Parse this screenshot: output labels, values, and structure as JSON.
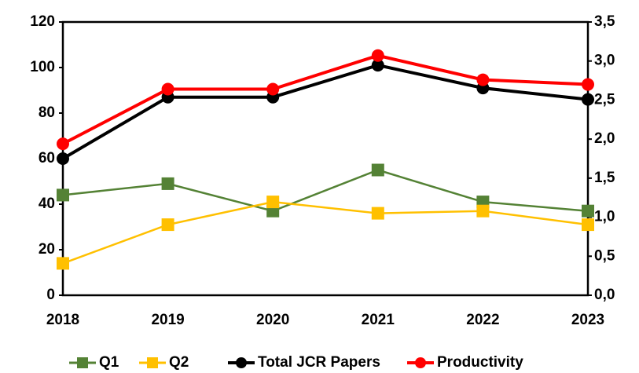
{
  "chart_data": {
    "type": "line",
    "categories": [
      "2018",
      "2019",
      "2020",
      "2021",
      "2022",
      "2023"
    ],
    "series": [
      {
        "name": "Q1",
        "color": "#548235",
        "marker": "square",
        "values": [
          44,
          49,
          37,
          55,
          41,
          37
        ]
      },
      {
        "name": "Q2",
        "color": "#ffc000",
        "marker": "square",
        "values": [
          14,
          31,
          41,
          36,
          37,
          31
        ]
      },
      {
        "name": "Total JCR Papers",
        "color": "#000000",
        "marker": "circle",
        "values": [
          60,
          87,
          87,
          101,
          91,
          86
        ]
      },
      {
        "name": "Productivity",
        "color": "#ff0000",
        "marker": "circle",
        "axis": "y2",
        "values": [
          1.94,
          2.64,
          2.64,
          3.07,
          2.76,
          2.7
        ]
      }
    ],
    "ylim": [
      0,
      120
    ],
    "yticks": [
      0,
      20,
      40,
      60,
      80,
      100,
      120
    ],
    "y2lim": [
      0,
      3.5
    ],
    "y2ticks": [
      {
        "value": 0,
        "label": "0,0"
      },
      {
        "value": 0.5,
        "label": "0,5"
      },
      {
        "value": 1,
        "label": "1,0"
      },
      {
        "value": 1.5,
        "label": "1,5"
      },
      {
        "value": 2,
        "label": "2,0"
      },
      {
        "value": 2.5,
        "label": "2,5"
      },
      {
        "value": 3,
        "label": "3,0"
      },
      {
        "value": 3.5,
        "label": "3,5"
      }
    ],
    "legend": "bottom"
  }
}
